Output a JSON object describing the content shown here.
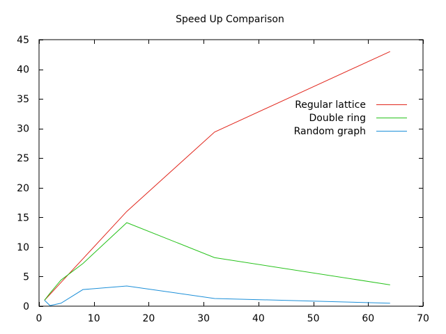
{
  "chart_data": {
    "type": "line",
    "title": "Speed Up Comparison",
    "xlabel": "",
    "ylabel": "",
    "xlim": [
      0,
      70
    ],
    "ylim": [
      0,
      45
    ],
    "xticks": [
      0,
      10,
      20,
      30,
      40,
      50,
      60,
      70
    ],
    "yticks": [
      0,
      5,
      10,
      15,
      20,
      25,
      30,
      35,
      40,
      45
    ],
    "grid": false,
    "legend_position": "right",
    "series": [
      {
        "name": "Regular lattice",
        "color": "#e1251b",
        "points": [
          [
            1,
            1
          ],
          [
            2,
            2
          ],
          [
            4,
            4
          ],
          [
            8,
            8
          ],
          [
            16,
            16
          ],
          [
            32,
            29.4
          ],
          [
            64,
            43
          ]
        ]
      },
      {
        "name": "Double ring",
        "color": "#26c21a",
        "points": [
          [
            1,
            1
          ],
          [
            2,
            2.2
          ],
          [
            4,
            4.4
          ],
          [
            8,
            7.2
          ],
          [
            16,
            14.1
          ],
          [
            32,
            8.2
          ],
          [
            64,
            3.6
          ]
        ]
      },
      {
        "name": "Random graph",
        "color": "#1a8ed8",
        "points": [
          [
            1,
            1
          ],
          [
            2,
            0.1
          ],
          [
            4,
            0.5
          ],
          [
            8,
            2.8
          ],
          [
            16,
            3.4
          ],
          [
            32,
            1.3
          ],
          [
            64,
            0.5
          ]
        ]
      }
    ]
  }
}
